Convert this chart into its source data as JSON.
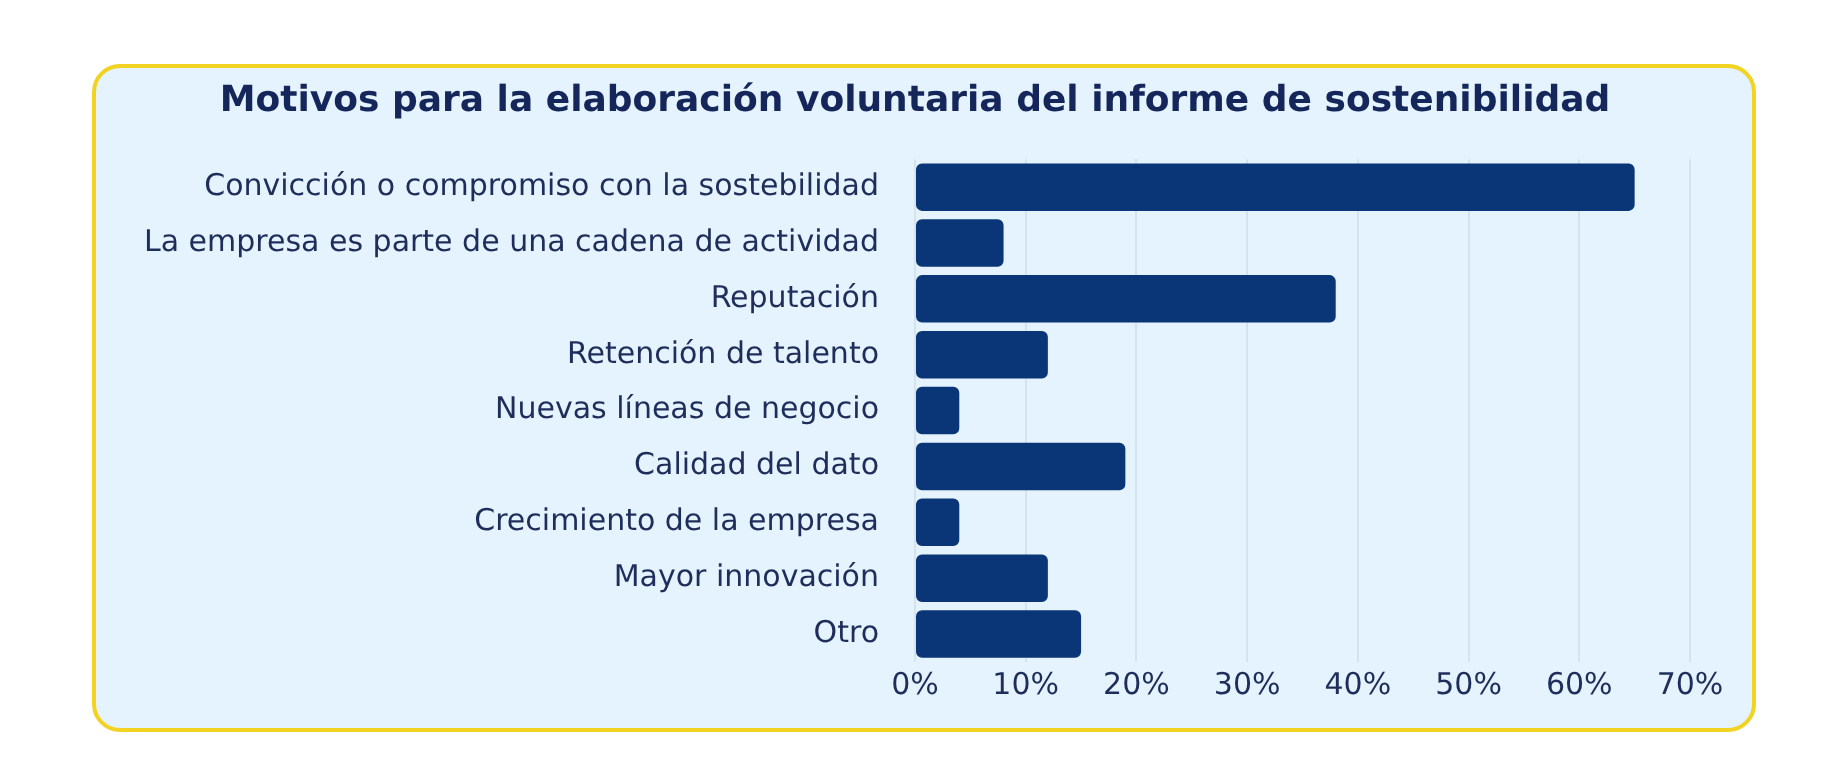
{
  "chart_data": {
    "type": "bar",
    "orientation": "horizontal",
    "title": "Motivos para la elaboración voluntaria del informe de sostenibilidad",
    "categories": [
      "Convicción o compromiso con la sostebilidad",
      "La empresa es parte de una cadena de actividad",
      "Reputación",
      "Retención de talento",
      "Nuevas líneas de negocio",
      "Calidad del dato",
      "Crecimiento de la empresa",
      "Mayor innovación",
      "Otro"
    ],
    "values": [
      65,
      8,
      38,
      12,
      4,
      19,
      4,
      12,
      15
    ],
    "color": "#0a3677",
    "xlim": [
      0,
      70
    ],
    "xticks": [
      {
        "value": 0,
        "label": "0%"
      },
      {
        "value": 10,
        "label": "10%"
      },
      {
        "value": 20,
        "label": "20%"
      },
      {
        "value": 30,
        "label": "30%"
      },
      {
        "value": 40,
        "label": "40%"
      },
      {
        "value": 50,
        "label": "50%"
      },
      {
        "value": 60,
        "label": "60%"
      },
      {
        "value": 70,
        "label": "70%"
      }
    ],
    "grid": "x",
    "legend": false
  }
}
